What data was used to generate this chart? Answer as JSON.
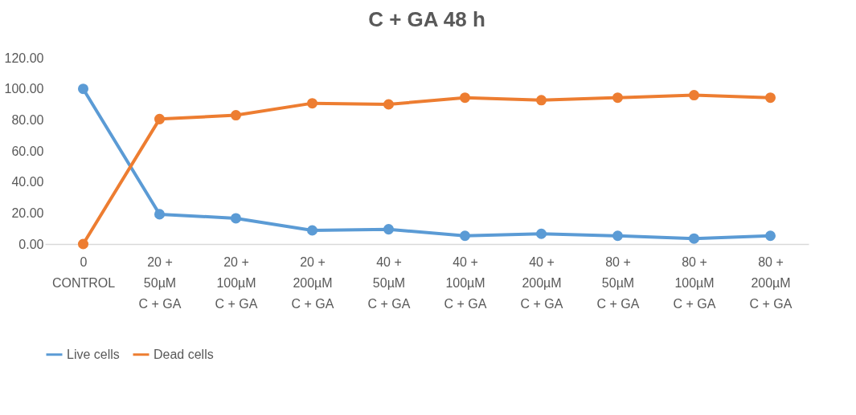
{
  "chart_data": {
    "type": "line",
    "title": "C + GA 48 h",
    "categories": [
      "0\n\n\nCONTROL",
      "20 +\n50µM\n\nC + GA",
      "20 +\n100µM\n\nC + GA",
      "20 +\n200µM\n\nC + GA",
      "40 +\n50µM\n\nC + GA",
      "40 +\n100µM\n\nC + GA",
      "40 +\n200µM\n\nC + GA",
      "80 +\n50µM\n\nC + GA",
      "80 +\n100µM\n\nC + GA",
      "80 +\n200µM\n\nC + GA"
    ],
    "series": [
      {
        "name": "Live cells",
        "color": "#5b9bd5",
        "values": [
          100.0,
          19.2,
          16.6,
          8.8,
          9.5,
          5.3,
          6.6,
          5.3,
          3.5,
          5.3
        ]
      },
      {
        "name": "Dead cells",
        "color": "#ed7d31",
        "values": [
          0.0,
          80.5,
          83.0,
          90.7,
          90.0,
          94.3,
          92.7,
          94.3,
          95.9,
          94.3
        ]
      }
    ],
    "ylim": [
      0,
      120
    ],
    "yticks": [
      {
        "value": 0,
        "label": "0.00"
      },
      {
        "value": 20,
        "label": "20.00"
      },
      {
        "value": 40,
        "label": "40.00"
      },
      {
        "value": 60,
        "label": "60.00"
      },
      {
        "value": 80,
        "label": "80.00"
      },
      {
        "value": 100,
        "label": "100.00"
      },
      {
        "value": 120,
        "label": "120.00"
      }
    ],
    "grid": false,
    "legend": "bottom",
    "marker": "circle",
    "line_style": "solid"
  }
}
